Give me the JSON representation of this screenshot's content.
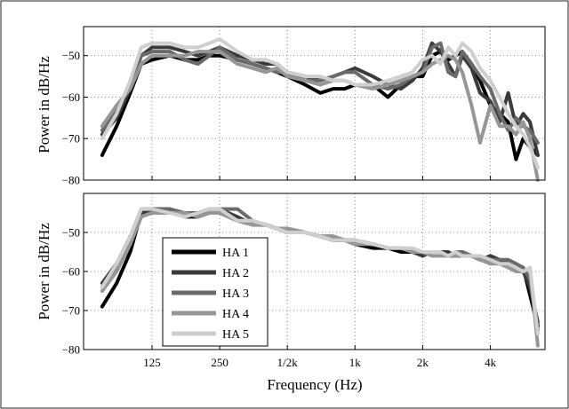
{
  "chart_data": [
    {
      "type": "line",
      "panel": "top",
      "xscale": "log2",
      "xlim": [
        62,
        7000
      ],
      "ylim": [
        -80,
        -43
      ],
      "grid": true,
      "ylabel": "Power in dB/Hz",
      "yticks": [
        -50,
        -60,
        -70,
        -80
      ],
      "yticklabels": [
        "−50",
        "−60",
        "−70",
        "−80"
      ],
      "x": [
        75,
        87,
        100,
        112,
        125,
        150,
        175,
        200,
        225,
        250,
        300,
        350,
        400,
        450,
        500,
        600,
        700,
        800,
        900,
        1000,
        1200,
        1400,
        1600,
        1800,
        2000,
        2200,
        2400,
        2600,
        2800,
        3000,
        3300,
        3600,
        4000,
        4400,
        4800,
        5200,
        5600,
        6000,
        6500
      ],
      "series": [
        {
          "name": "HA 1",
          "color": "#000000",
          "values": [
            -74,
            -67,
            -59,
            -52,
            -51,
            -50,
            -51,
            -51,
            -50,
            -50,
            -51,
            -52,
            -53,
            -54,
            -55,
            -57,
            -59,
            -58,
            -58,
            -57,
            -57,
            -60,
            -57,
            -55,
            -55,
            -50,
            -49,
            -51,
            -50,
            -49,
            -52,
            -56,
            -62,
            -64,
            -66,
            -75,
            -70,
            -72,
            -74
          ]
        },
        {
          "name": "HA 2",
          "color": "#3a3a3a",
          "values": [
            -69,
            -65,
            -58,
            -50,
            -48,
            -48,
            -49,
            -50,
            -49,
            -48,
            -50,
            -51,
            -52,
            -52,
            -54,
            -55,
            -56,
            -55,
            -54,
            -53,
            -55,
            -57,
            -58,
            -56,
            -53,
            -47,
            -49,
            -52,
            -55,
            -50,
            -53,
            -59,
            -61,
            -66,
            -59,
            -67,
            -64,
            -66,
            -74
          ]
        },
        {
          "name": "HA 3",
          "color": "#6a6a6a",
          "values": [
            -68,
            -63,
            -57,
            -50,
            -49,
            -49,
            -51,
            -52,
            -50,
            -48,
            -51,
            -52,
            -53,
            -54,
            -54,
            -56,
            -56,
            -55,
            -54,
            -54,
            -57,
            -58,
            -57,
            -55,
            -54,
            -48,
            -47,
            -54,
            -55,
            -49,
            -52,
            -55,
            -58,
            -64,
            -68,
            -65,
            -67,
            -68,
            -71
          ]
        },
        {
          "name": "HA 4",
          "color": "#969696",
          "values": [
            -67,
            -62,
            -58,
            -52,
            -50,
            -50,
            -50,
            -49,
            -49,
            -49,
            -52,
            -53,
            -54,
            -53,
            -55,
            -56,
            -57,
            -56,
            -56,
            -57,
            -58,
            -57,
            -56,
            -55,
            -54,
            -52,
            -51,
            -50,
            -51,
            -54,
            -62,
            -71,
            -62,
            -67,
            -67,
            -69,
            -66,
            -70,
            -80
          ]
        },
        {
          "name": "HA 5",
          "color": "#cfcfcf",
          "values": [
            -70,
            -64,
            -56,
            -48,
            -47,
            -47,
            -48,
            -48,
            -47,
            -46,
            -49,
            -51,
            -51,
            -52,
            -54,
            -55,
            -55,
            -56,
            -56,
            -57,
            -57,
            -56,
            -55,
            -54,
            -51,
            -50,
            -52,
            -48,
            -50,
            -47,
            -49,
            -53,
            -56,
            -60,
            -64,
            -67,
            -69,
            -72,
            -77
          ]
        }
      ]
    },
    {
      "type": "line",
      "panel": "bottom",
      "xscale": "log2",
      "xlim": [
        62,
        7000
      ],
      "ylim": [
        -80,
        -40
      ],
      "grid": true,
      "ylabel": "Power in dB/Hz",
      "xlabel": "Frequency (Hz)",
      "yticks": [
        -50,
        -60,
        -70,
        -80
      ],
      "yticklabels": [
        "−50",
        "−60",
        "−70",
        "−80"
      ],
      "xticks": [
        125,
        250,
        500,
        1000,
        2000,
        4000
      ],
      "xticklabels": [
        "125",
        "250",
        "1/2k",
        "1k",
        "2k",
        "4k"
      ],
      "legend": "lower-left",
      "x": [
        75,
        87,
        100,
        112,
        125,
        150,
        175,
        200,
        225,
        250,
        300,
        350,
        400,
        450,
        500,
        600,
        700,
        800,
        900,
        1000,
        1200,
        1400,
        1600,
        1800,
        2000,
        2200,
        2400,
        2600,
        2800,
        3000,
        3300,
        3600,
        4000,
        4400,
        4800,
        5200,
        5600,
        6000,
        6500
      ],
      "series": [
        {
          "name": "HA 1",
          "color": "#000000",
          "values": [
            -69,
            -63,
            -55,
            -45,
            -44,
            -44,
            -46,
            -46,
            -45,
            -45,
            -47,
            -48,
            -48,
            -49,
            -50,
            -50,
            -51,
            -52,
            -52,
            -53,
            -54,
            -54,
            -55,
            -55,
            -55,
            -55,
            -55,
            -56,
            -56,
            -56,
            -56,
            -57,
            -57,
            -57,
            -58,
            -59,
            -59,
            -66,
            -74
          ]
        },
        {
          "name": "HA 2",
          "color": "#3a3a3a",
          "values": [
            -63,
            -58,
            -51,
            -45,
            -44,
            -44,
            -46,
            -45,
            -44,
            -44,
            -46,
            -48,
            -48,
            -49,
            -50,
            -50,
            -51,
            -51,
            -52,
            -52,
            -53,
            -54,
            -54,
            -55,
            -56,
            -55,
            -55,
            -55,
            -56,
            -55,
            -56,
            -57,
            -56,
            -57,
            -58,
            -59,
            -60,
            -64,
            -73
          ]
        },
        {
          "name": "HA 3",
          "color": "#6a6a6a",
          "values": [
            -64,
            -59,
            -51,
            -44,
            -44,
            -44,
            -45,
            -45,
            -44,
            -44,
            -44,
            -47,
            -48,
            -49,
            -49,
            -50,
            -51,
            -51,
            -52,
            -52,
            -53,
            -54,
            -54,
            -55,
            -55,
            -55,
            -55,
            -56,
            -55,
            -55,
            -56,
            -57,
            -57,
            -57,
            -57,
            -58,
            -59,
            -62,
            -75
          ]
        },
        {
          "name": "HA 4",
          "color": "#969696",
          "values": [
            -65,
            -60,
            -53,
            -46,
            -45,
            -45,
            -45,
            -46,
            -45,
            -45,
            -47,
            -48,
            -48,
            -49,
            -49,
            -50,
            -51,
            -51,
            -52,
            -53,
            -53,
            -54,
            -54,
            -55,
            -55,
            -56,
            -56,
            -56,
            -56,
            -56,
            -56,
            -57,
            -58,
            -58,
            -59,
            -60,
            -60,
            -59,
            -79
          ]
        },
        {
          "name": "HA 5",
          "color": "#cfcfcf",
          "values": [
            -64,
            -58,
            -51,
            -44,
            -44,
            -45,
            -46,
            -45,
            -44,
            -44,
            -47,
            -47,
            -48,
            -49,
            -50,
            -50,
            -51,
            -52,
            -52,
            -52,
            -53,
            -54,
            -54,
            -54,
            -55,
            -55,
            -55,
            -56,
            -55,
            -56,
            -56,
            -56,
            -57,
            -58,
            -58,
            -59,
            -60,
            -59,
            -76
          ]
        }
      ]
    }
  ]
}
